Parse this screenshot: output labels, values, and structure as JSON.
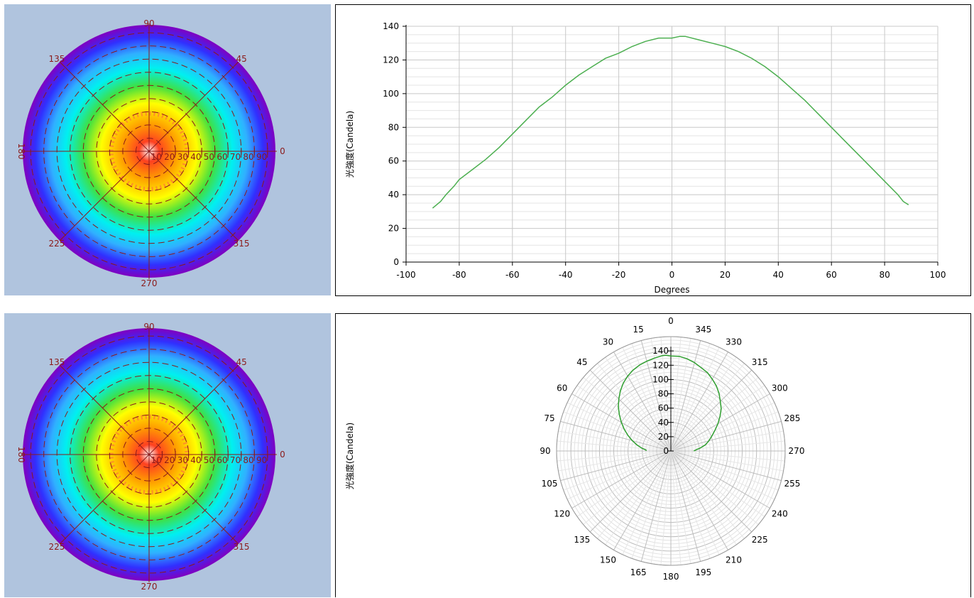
{
  "polar_map": {
    "angle_labels": [
      "90",
      "45",
      "0",
      "315",
      "270",
      "225",
      "180",
      "135"
    ],
    "ring_labels": [
      "10",
      "20",
      "30",
      "40",
      "50",
      "60",
      "70",
      "80",
      "90"
    ],
    "colors": {
      "background": "#b0c4de",
      "grid": "#8b1a1a",
      "scale": [
        "#ffffff",
        "#ff4020",
        "#ffa000",
        "#ffff00",
        "#40e040",
        "#00f0f0",
        "#30b0ff",
        "#3030ff",
        "#8000c0"
      ]
    }
  },
  "chart_data": [
    {
      "type": "line",
      "ylabel": "光強度(Candela)",
      "xlabel": "Degrees",
      "xlim": [
        -100,
        100
      ],
      "ylim": [
        0,
        140
      ],
      "xticks": [
        "-100",
        "-80",
        "-60",
        "-40",
        "-20",
        "0",
        "20",
        "40",
        "60",
        "80",
        "100"
      ],
      "yticks": [
        "0",
        "20",
        "40",
        "60",
        "80",
        "100",
        "120",
        "140"
      ],
      "grid": true,
      "line_color": "#4caf50",
      "series": [
        {
          "x": [
            -90,
            -87,
            -85,
            -82,
            -80,
            -75,
            -70,
            -65,
            -60,
            -55,
            -50,
            -45,
            -40,
            -35,
            -30,
            -25,
            -20,
            -15,
            -10,
            -5,
            0,
            3,
            5,
            10,
            15,
            20,
            25,
            30,
            35,
            40,
            45,
            50,
            55,
            60,
            65,
            70,
            75,
            80,
            85,
            87,
            89
          ],
          "y": [
            32,
            36,
            40,
            45,
            49,
            55,
            61,
            68,
            76,
            84,
            92,
            98,
            105,
            111,
            116,
            121,
            124,
            128,
            131,
            133,
            133,
            134,
            134,
            132,
            130,
            128,
            125,
            121,
            116,
            110,
            103,
            96,
            88,
            80,
            72,
            64,
            56,
            48,
            40,
            36,
            34
          ]
        }
      ]
    },
    {
      "type": "polar",
      "ylabel": "光強度(Candela)",
      "angle_labels": [
        "0",
        "345",
        "330",
        "315",
        "300",
        "285",
        "270",
        "255",
        "240",
        "225",
        "210",
        "195",
        "180",
        "165",
        "150",
        "135",
        "120",
        "105",
        "90",
        "75",
        "60",
        "45",
        "30",
        "15"
      ],
      "radial_ticks": [
        "0",
        "20",
        "40",
        "60",
        "80",
        "100",
        "120",
        "140"
      ],
      "rlim": [
        0,
        160
      ],
      "line_color": "#2e9e2e",
      "series": [
        {
          "theta": [
            -90,
            -87,
            -85,
            -82,
            -80,
            -75,
            -70,
            -65,
            -60,
            -55,
            -50,
            -45,
            -40,
            -35,
            -30,
            -25,
            -20,
            -15,
            -10,
            -5,
            0,
            3,
            5,
            10,
            15,
            20,
            25,
            30,
            35,
            40,
            45,
            50,
            55,
            60,
            65,
            70,
            75,
            80,
            85,
            87,
            89
          ],
          "r": [
            32,
            36,
            40,
            45,
            49,
            55,
            61,
            68,
            76,
            84,
            92,
            98,
            105,
            111,
            116,
            121,
            124,
            128,
            131,
            133,
            133,
            134,
            134,
            132,
            130,
            128,
            125,
            121,
            116,
            110,
            103,
            96,
            88,
            80,
            72,
            64,
            56,
            48,
            40,
            36,
            34
          ]
        }
      ]
    }
  ]
}
